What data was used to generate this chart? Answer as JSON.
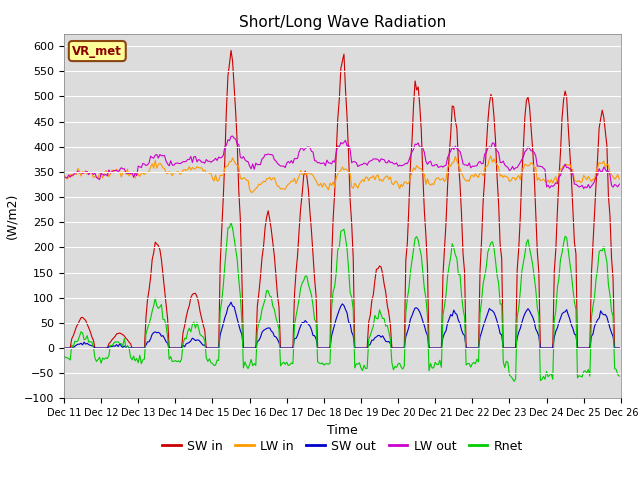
{
  "title": "Short/Long Wave Radiation",
  "ylabel": "(W/m2)",
  "xlabel": "Time",
  "station_label": "VR_met",
  "ylim": [
    -100,
    625
  ],
  "yticks": [
    -100,
    -50,
    0,
    50,
    100,
    150,
    200,
    250,
    300,
    350,
    400,
    450,
    500,
    550,
    600
  ],
  "bg_color": "#dcdcdc",
  "legend": [
    "SW in",
    "LW in",
    "SW out",
    "LW out",
    "Rnet"
  ],
  "colors": {
    "SW_in": "#cc0000",
    "LW_in": "#ff9900",
    "SW_out": "#0000cc",
    "LW_out": "#cc00cc",
    "Rnet": "#00cc00"
  },
  "n_days": 15,
  "hours_per_day": 24,
  "start_day": 11
}
